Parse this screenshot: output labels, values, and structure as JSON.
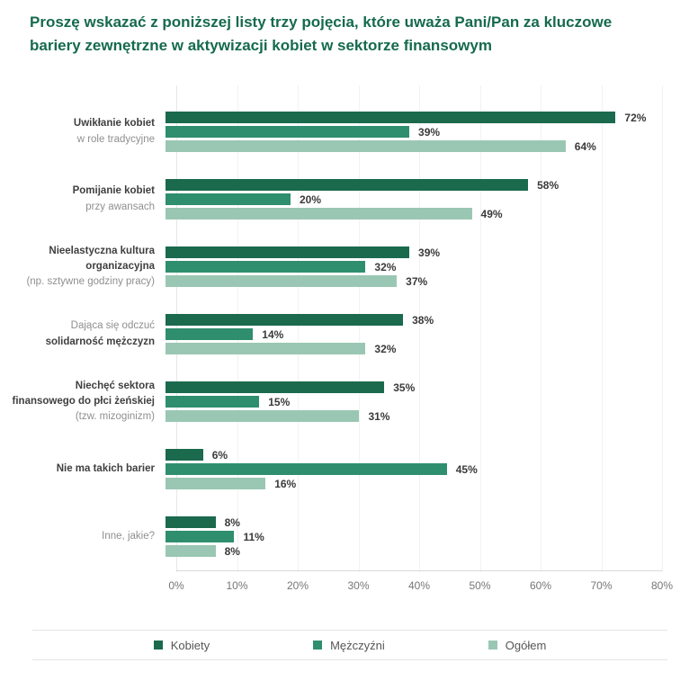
{
  "title": {
    "line1": "Proszę wskazać z poniższej listy trzy pojęcia, które uważa Pani/Pan za kluczowe",
    "line2": "bariery zewnętrzne w aktywizacji kobiet w sektorze finansowym",
    "color": "#156a4e"
  },
  "colors": {
    "kobiety": "#1b6a4e",
    "mezczyzni": "#2e8e6e",
    "ogolem": "#9ac7b3",
    "gridline": "#f2f2f2",
    "axis_line": "#d9d9d9"
  },
  "chart_data": {
    "type": "bar",
    "orientation": "horizontal",
    "title": "Proszę wskazać z poniższej listy trzy pojęcia, które uważa Pani/Pan za kluczowe bariery zewnętrzne w aktywizacji kobiet w sektorze finansowym",
    "xlabel": "",
    "ylabel": "",
    "xlim": [
      0,
      80
    ],
    "x_ticks": [
      "0%",
      "10%",
      "20%",
      "30%",
      "40%",
      "50%",
      "60%",
      "70%",
      "80%"
    ],
    "grid": true,
    "legend_position": "bottom",
    "value_suffix": "%",
    "categories": [
      {
        "lines": [
          {
            "text": "Uwikłanie kobiet",
            "bold": true
          },
          {
            "text": "w role tradycyjne",
            "bold": false
          }
        ]
      },
      {
        "lines": [
          {
            "text": "Pomijanie kobiet",
            "bold": true
          },
          {
            "text": "przy awansach",
            "bold": false
          }
        ]
      },
      {
        "lines": [
          {
            "text": "Nieelastyczna kultura",
            "bold": true
          },
          {
            "text": "organizacyjna",
            "bold": true
          },
          {
            "text": "(np. sztywne godziny pracy)",
            "bold": false
          }
        ]
      },
      {
        "lines": [
          {
            "text": "Dająca się odczuć",
            "bold": false
          },
          {
            "text": "solidarność mężczyzn",
            "bold": true
          }
        ]
      },
      {
        "lines": [
          {
            "text": "Niechęć sektora",
            "bold": true
          },
          {
            "text": "finansowego do płci żeńskiej",
            "bold": true
          },
          {
            "text": "(tzw. mizoginizm)",
            "bold": false
          }
        ]
      },
      {
        "lines": [
          {
            "text": "Nie ma takich barier",
            "bold": true
          }
        ]
      },
      {
        "lines": [
          {
            "text": "Inne, jakie?",
            "bold": false
          }
        ]
      }
    ],
    "series": [
      {
        "name": "Kobiety",
        "color": "#1b6a4e",
        "values": [
          72,
          58,
          39,
          38,
          35,
          6,
          8
        ]
      },
      {
        "name": "Mężczyźni",
        "color": "#2e8e6e",
        "values": [
          39,
          20,
          32,
          14,
          15,
          45,
          11
        ]
      },
      {
        "name": "Ogółem",
        "color": "#9ac7b3",
        "values": [
          64,
          49,
          37,
          32,
          31,
          16,
          8
        ]
      }
    ]
  },
  "legend": {
    "items": [
      {
        "label": "Kobiety",
        "color": "#1b6a4e"
      },
      {
        "label": "Mężczyźni",
        "color": "#2e8e6e"
      },
      {
        "label": "Ogółem",
        "color": "#9ac7b3"
      }
    ]
  }
}
